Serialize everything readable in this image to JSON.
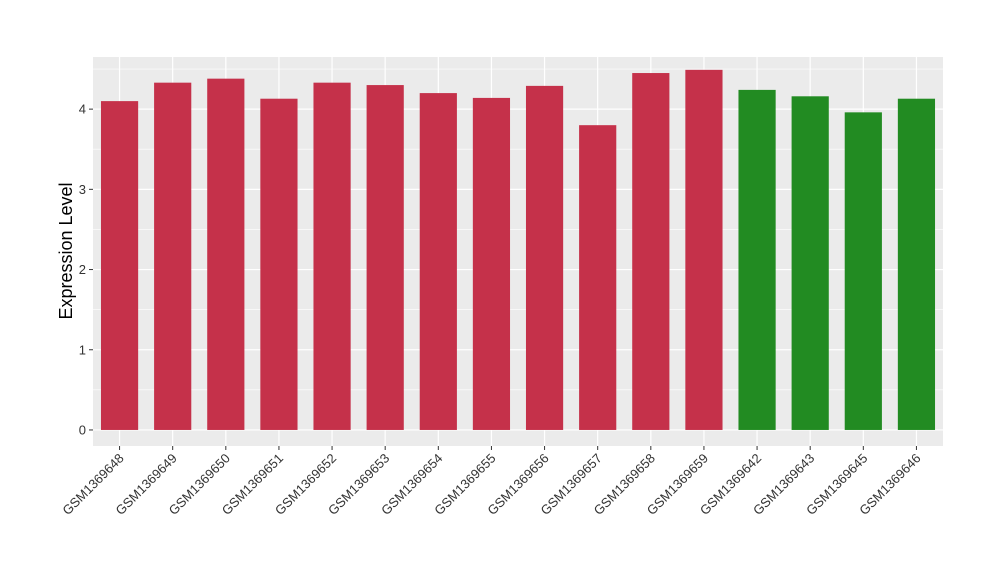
{
  "chart_data": {
    "type": "bar",
    "title": "",
    "xlabel": "",
    "ylabel": "Expression Level",
    "ylim": [
      -0.2,
      4.65
    ],
    "yticks": [
      0,
      1,
      2,
      3,
      4
    ],
    "grid": true,
    "legend": "none",
    "categories": [
      "GSM1369648",
      "GSM1369649",
      "GSM1369650",
      "GSM1369651",
      "GSM1369652",
      "GSM1369653",
      "GSM1369654",
      "GSM1369655",
      "GSM1369656",
      "GSM1369657",
      "GSM1369658",
      "GSM1369659",
      "GSM1369642",
      "GSM1369643",
      "GSM1369645",
      "GSM1369646"
    ],
    "values": [
      4.1,
      4.33,
      4.38,
      4.13,
      4.33,
      4.3,
      4.2,
      4.14,
      4.29,
      3.8,
      4.45,
      4.49,
      4.24,
      4.16,
      3.96,
      4.13
    ],
    "bar_colors": [
      "#c5314a",
      "#c5314a",
      "#c5314a",
      "#c5314a",
      "#c5314a",
      "#c5314a",
      "#c5314a",
      "#c5314a",
      "#c5314a",
      "#c5314a",
      "#c5314a",
      "#c5314a",
      "#228b22",
      "#228b22",
      "#228b22",
      "#228b22"
    ]
  },
  "colors": {
    "panel_background": "#ebebeb",
    "gridline": "#ffffff",
    "tick_text": "#333333",
    "tick_mark": "#333333"
  }
}
